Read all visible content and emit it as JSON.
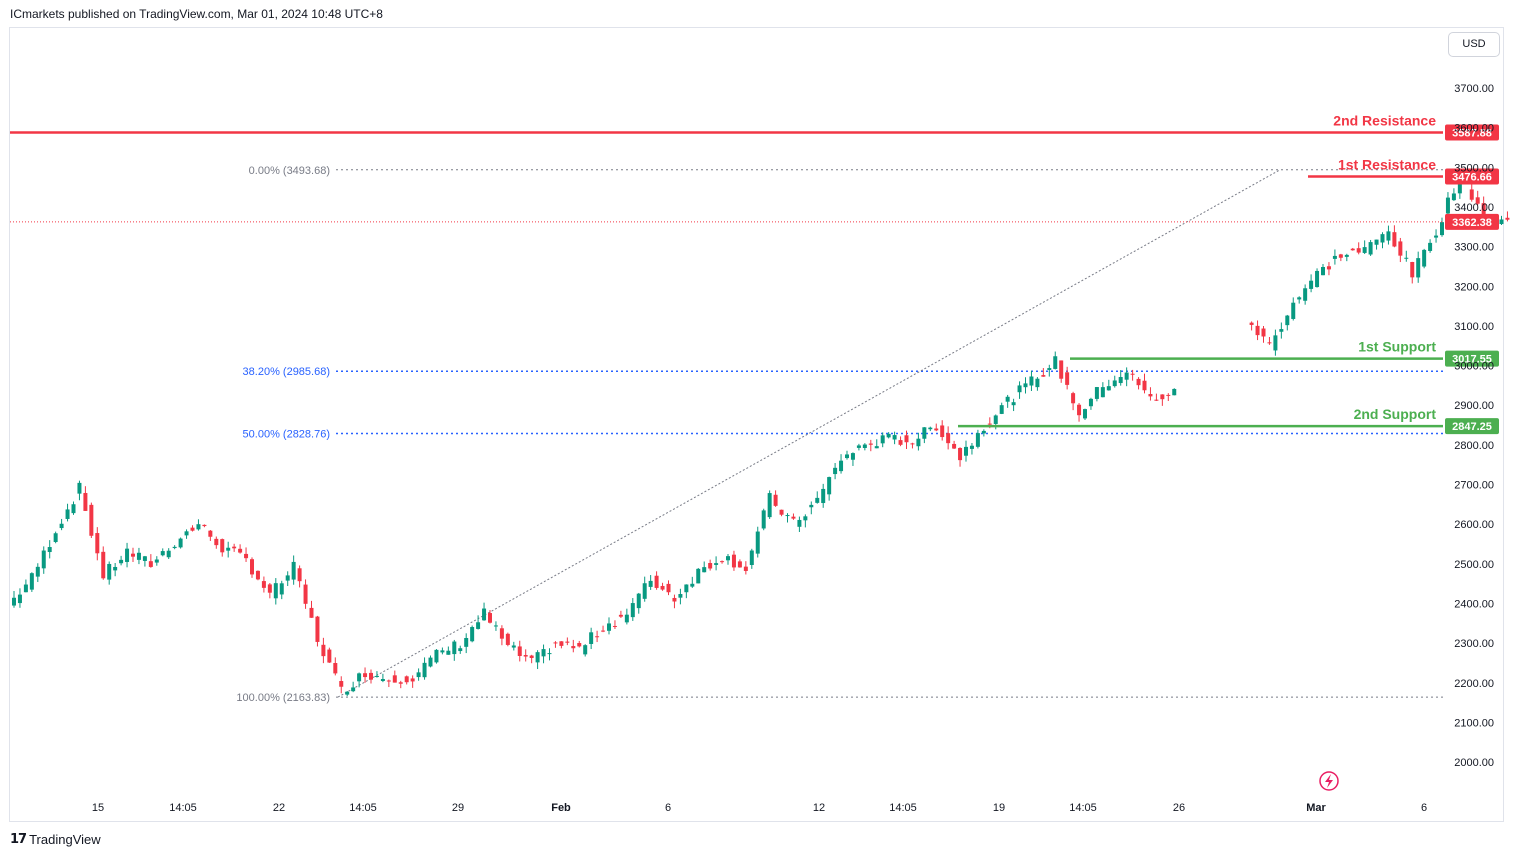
{
  "header": {
    "published": "ICmarkets published on TradingView.com, Mar 01, 2024 10:48 UTC+8"
  },
  "currency": "USD",
  "footer": {
    "brand": "TradingView"
  },
  "colors": {
    "up": "#089981",
    "down": "#f23645",
    "resistance": "#f23645",
    "support": "#4caf50",
    "fib": "#2962ff",
    "fib_100": "#787b86"
  },
  "chart_data": {
    "type": "candlestick",
    "y_ticks": [
      "3700.00",
      "3600.00",
      "3500.00",
      "3400.00",
      "3300.00",
      "3200.00",
      "3100.00",
      "3000.00",
      "2900.00",
      "2800.00",
      "2700.00",
      "2600.00",
      "2500.00",
      "2400.00",
      "2300.00",
      "2200.00",
      "2100.00",
      "2000.00"
    ],
    "x_ticks": [
      {
        "label": "15",
        "bold": false
      },
      {
        "label": "14:05",
        "bold": false
      },
      {
        "label": "22",
        "bold": false
      },
      {
        "label": "14:05",
        "bold": false
      },
      {
        "label": "29",
        "bold": false
      },
      {
        "label": "Feb",
        "bold": true
      },
      {
        "label": "6",
        "bold": false
      },
      {
        "label": "12",
        "bold": false
      },
      {
        "label": "14:05",
        "bold": false
      },
      {
        "label": "19",
        "bold": false
      },
      {
        "label": "14:05",
        "bold": false
      },
      {
        "label": "26",
        "bold": false
      },
      {
        "label": "Mar",
        "bold": true
      },
      {
        "label": "6",
        "bold": false
      }
    ],
    "levels": [
      {
        "label": "2nd Resistance",
        "value": 3587.88,
        "tag": "3587.88",
        "kind": "resistance"
      },
      {
        "label": "1st Resistance",
        "value": 3476.66,
        "tag": "3476.66",
        "kind": "resistance"
      },
      {
        "label": "1st Support",
        "value": 3017.55,
        "tag": "3017.55",
        "kind": "support"
      },
      {
        "label": "2nd Support",
        "value": 2847.25,
        "tag": "2847.25",
        "kind": "support"
      }
    ],
    "last_price": {
      "value": 3362.38,
      "tag": "3362.38"
    },
    "fibonacci": [
      {
        "label": "0.00% (3493.68)",
        "value": 3493.68
      },
      {
        "label": "38.20% (2985.68)",
        "value": 2985.68
      },
      {
        "label": "50.00% (2828.76)",
        "value": 2828.76
      },
      {
        "label": "100.00% (2163.83)",
        "value": 2163.83
      }
    ],
    "close_path": [
      [
        0,
        2395
      ],
      [
        1,
        2465
      ],
      [
        2,
        2585
      ],
      [
        3,
        2690
      ],
      [
        4,
        2470
      ],
      [
        5,
        2530
      ],
      [
        6,
        2500
      ],
      [
        7,
        2555
      ],
      [
        8,
        2600
      ],
      [
        9,
        2540
      ],
      [
        10,
        2510
      ],
      [
        11,
        2420
      ],
      [
        12,
        2490
      ],
      [
        13,
        2310
      ],
      [
        14,
        2180
      ],
      [
        15,
        2225
      ],
      [
        16,
        2210
      ],
      [
        17,
        2215
      ],
      [
        18,
        2270
      ],
      [
        19,
        2300
      ],
      [
        20,
        2375
      ],
      [
        21,
        2290
      ],
      [
        22,
        2250
      ],
      [
        23,
        2300
      ],
      [
        24,
        2285
      ],
      [
        25,
        2340
      ],
      [
        26,
        2375
      ],
      [
        27,
        2460
      ],
      [
        28,
        2415
      ],
      [
        29,
        2480
      ],
      [
        30,
        2520
      ],
      [
        31,
        2490
      ],
      [
        32,
        2665
      ],
      [
        33,
        2600
      ],
      [
        34,
        2660
      ],
      [
        35,
        2765
      ],
      [
        36,
        2800
      ],
      [
        37,
        2815
      ],
      [
        38,
        2810
      ],
      [
        39,
        2850
      ],
      [
        40,
        2770
      ],
      [
        41,
        2850
      ],
      [
        42,
        2910
      ],
      [
        43,
        2960
      ],
      [
        44,
        3010
      ],
      [
        45,
        2880
      ],
      [
        46,
        2950
      ],
      [
        47,
        2985
      ],
      [
        48,
        2915
      ],
      [
        49,
        2930
      ],
      [
        52,
        3120
      ],
      [
        53,
        3050
      ],
      [
        54,
        3160
      ],
      [
        55,
        3230
      ],
      [
        56,
        3280
      ],
      [
        57,
        3290
      ],
      [
        58,
        3340
      ],
      [
        59,
        3230
      ],
      [
        60,
        3340
      ],
      [
        61,
        3485
      ],
      [
        62,
        3380
      ],
      [
        63,
        3362
      ]
    ]
  }
}
